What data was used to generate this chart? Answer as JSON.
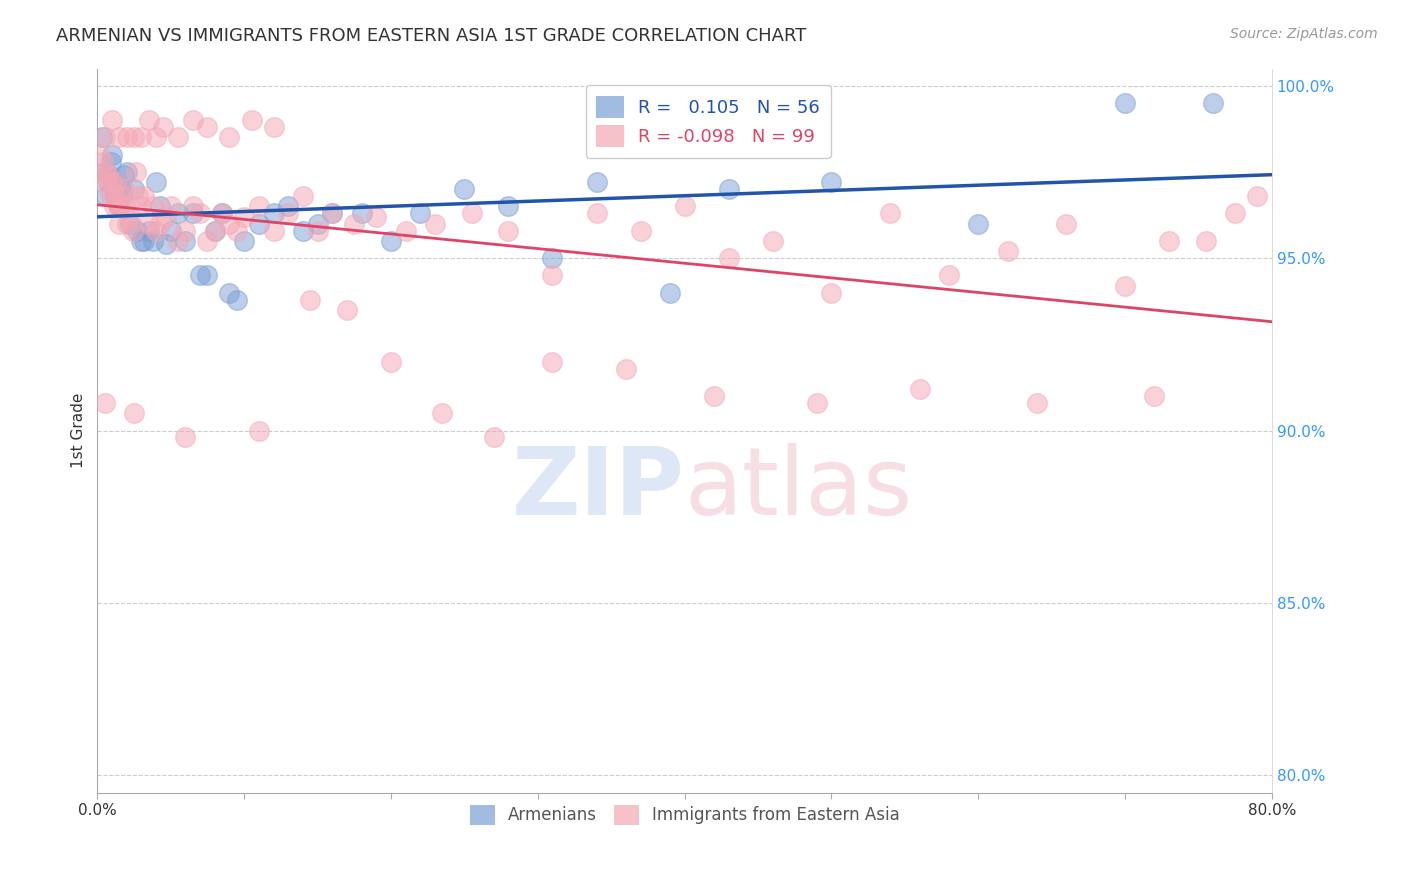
{
  "title": "ARMENIAN VS IMMIGRANTS FROM EASTERN ASIA 1ST GRADE CORRELATION CHART",
  "source": "Source: ZipAtlas.com",
  "ylabel": "1st Grade",
  "xlim": [
    0.0,
    0.8
  ],
  "ylim": [
    0.795,
    1.005
  ],
  "blue_color": "#7b9fd4",
  "pink_color": "#f4a7b4",
  "blue_line_color": "#2255aa",
  "pink_line_color": "#dd4466",
  "blue_label": "Armenians",
  "pink_label": "Immigrants from Eastern Asia",
  "blue_R": 0.105,
  "blue_N": 56,
  "pink_R": -0.098,
  "pink_N": 99,
  "blue_x": [
    0.003,
    0.005,
    0.006,
    0.007,
    0.008,
    0.009,
    0.01,
    0.011,
    0.012,
    0.013,
    0.014,
    0.015,
    0.016,
    0.017,
    0.018,
    0.02,
    0.022,
    0.025,
    0.027,
    0.03,
    0.032,
    0.035,
    0.038,
    0.04,
    0.043,
    0.047,
    0.05,
    0.055,
    0.06,
    0.065,
    0.07,
    0.075,
    0.08,
    0.085,
    0.09,
    0.095,
    0.1,
    0.11,
    0.12,
    0.13,
    0.14,
    0.15,
    0.16,
    0.18,
    0.2,
    0.22,
    0.25,
    0.28,
    0.31,
    0.34,
    0.39,
    0.43,
    0.5,
    0.6,
    0.7,
    0.76
  ],
  "blue_y": [
    0.985,
    0.975,
    0.968,
    0.972,
    0.974,
    0.978,
    0.98,
    0.97,
    0.968,
    0.972,
    0.966,
    0.965,
    0.97,
    0.968,
    0.974,
    0.975,
    0.96,
    0.97,
    0.958,
    0.955,
    0.955,
    0.958,
    0.955,
    0.972,
    0.965,
    0.954,
    0.958,
    0.963,
    0.955,
    0.963,
    0.945,
    0.945,
    0.958,
    0.963,
    0.94,
    0.938,
    0.955,
    0.96,
    0.963,
    0.965,
    0.958,
    0.96,
    0.963,
    0.963,
    0.955,
    0.963,
    0.97,
    0.965,
    0.95,
    0.972,
    0.94,
    0.97,
    0.972,
    0.96,
    0.995,
    0.995
  ],
  "pink_x": [
    0.002,
    0.004,
    0.005,
    0.006,
    0.007,
    0.008,
    0.009,
    0.01,
    0.011,
    0.012,
    0.013,
    0.014,
    0.015,
    0.016,
    0.017,
    0.018,
    0.019,
    0.02,
    0.022,
    0.024,
    0.026,
    0.028,
    0.03,
    0.032,
    0.035,
    0.038,
    0.04,
    0.043,
    0.047,
    0.05,
    0.055,
    0.06,
    0.065,
    0.07,
    0.075,
    0.08,
    0.085,
    0.09,
    0.095,
    0.1,
    0.11,
    0.12,
    0.13,
    0.14,
    0.15,
    0.16,
    0.175,
    0.19,
    0.21,
    0.23,
    0.255,
    0.28,
    0.31,
    0.34,
    0.37,
    0.4,
    0.43,
    0.46,
    0.5,
    0.54,
    0.58,
    0.62,
    0.66,
    0.7,
    0.73,
    0.755,
    0.775,
    0.79,
    0.005,
    0.01,
    0.015,
    0.02,
    0.025,
    0.03,
    0.035,
    0.04,
    0.045,
    0.055,
    0.065,
    0.075,
    0.09,
    0.105,
    0.12,
    0.145,
    0.17,
    0.2,
    0.235,
    0.27,
    0.31,
    0.36,
    0.42,
    0.49,
    0.56,
    0.64,
    0.72,
    0.005,
    0.025,
    0.06,
    0.11
  ],
  "pink_y": [
    0.98,
    0.978,
    0.975,
    0.972,
    0.974,
    0.97,
    0.968,
    0.972,
    0.965,
    0.968,
    0.972,
    0.965,
    0.96,
    0.965,
    0.968,
    0.97,
    0.965,
    0.96,
    0.962,
    0.958,
    0.975,
    0.968,
    0.965,
    0.968,
    0.96,
    0.965,
    0.958,
    0.96,
    0.962,
    0.965,
    0.955,
    0.958,
    0.965,
    0.963,
    0.955,
    0.958,
    0.963,
    0.96,
    0.958,
    0.962,
    0.965,
    0.958,
    0.963,
    0.968,
    0.958,
    0.963,
    0.96,
    0.962,
    0.958,
    0.96,
    0.963,
    0.958,
    0.945,
    0.963,
    0.958,
    0.965,
    0.95,
    0.955,
    0.94,
    0.963,
    0.945,
    0.952,
    0.96,
    0.942,
    0.955,
    0.955,
    0.963,
    0.968,
    0.985,
    0.99,
    0.985,
    0.985,
    0.985,
    0.985,
    0.99,
    0.985,
    0.988,
    0.985,
    0.99,
    0.988,
    0.985,
    0.99,
    0.988,
    0.938,
    0.935,
    0.92,
    0.905,
    0.898,
    0.92,
    0.918,
    0.91,
    0.908,
    0.912,
    0.908,
    0.91,
    0.908,
    0.905,
    0.898,
    0.9
  ]
}
